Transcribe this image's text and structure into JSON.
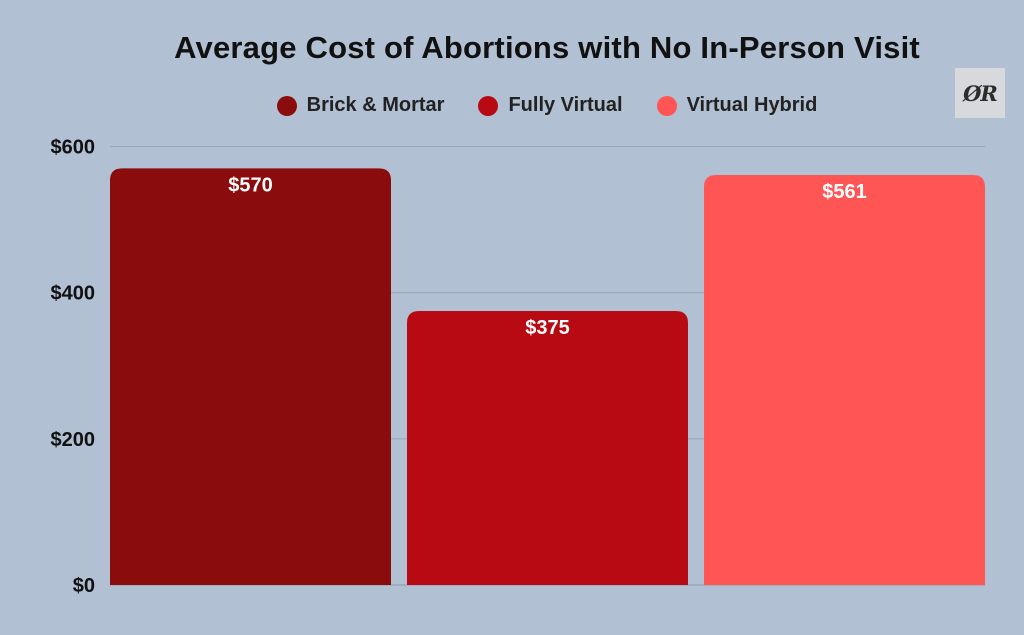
{
  "chart_data": {
    "type": "bar",
    "title": "Average Cost of Abortions with No In-Person Visit",
    "categories": [
      "Brick & Mortar",
      "Fully Virtual",
      "Virtual Hybrid"
    ],
    "values": [
      570,
      375,
      561
    ],
    "data_labels": [
      "$570",
      "$375",
      "$561"
    ],
    "colors": [
      "#8b0c0c",
      "#b80a12",
      "#ff5555"
    ],
    "legend": [
      "Brick & Mortar",
      "Fully Virtual",
      "Virtual Hybrid"
    ],
    "legend_position": "top-center",
    "ylim": [
      0,
      600
    ],
    "yticks": [
      0,
      200,
      400,
      600
    ],
    "ytick_labels": [
      "$0",
      "$200",
      "$400",
      "$600"
    ],
    "xlabel": "",
    "ylabel": "",
    "grid": true
  },
  "logo": {
    "text": "ØR"
  }
}
